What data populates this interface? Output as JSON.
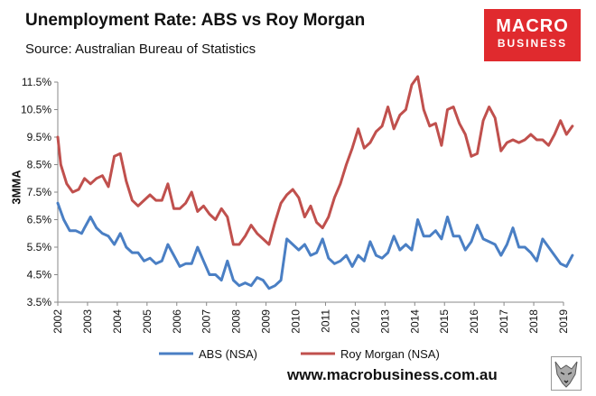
{
  "header": {
    "title": "Unemployment Rate: ABS vs Roy Morgan",
    "subtitle": "Source: Australian Bureau of Statistics"
  },
  "logo": {
    "line1": "MACRO",
    "line2": "BUSINESS",
    "color": "#e02a2e"
  },
  "footer": {
    "url": "www.macrobusiness.com.au"
  },
  "colors": {
    "abs": "#4a7fc4",
    "roy": "#c0504d",
    "axis": "#888888"
  },
  "chart_data": {
    "type": "line",
    "title": "Unemployment Rate: ABS vs Roy Morgan",
    "xlabel": "",
    "ylabel": "3MMA",
    "ylim": [
      3.5,
      11.5
    ],
    "xlim": [
      2002,
      2019
    ],
    "y_ticks": [
      3.5,
      4.5,
      5.5,
      6.5,
      7.5,
      8.5,
      9.5,
      10.5,
      11.5
    ],
    "y_tick_labels": [
      "3.5%",
      "4.5%",
      "5.5%",
      "6.5%",
      "7.5%",
      "8.5%",
      "9.5%",
      "10.5%",
      "11.5%"
    ],
    "x_ticks": [
      2002,
      2003,
      2004,
      2005,
      2006,
      2007,
      2008,
      2009,
      2010,
      2011,
      2012,
      2013,
      2014,
      2015,
      2016,
      2017,
      2018,
      2019
    ],
    "x_tick_labels": [
      "2002",
      "2003",
      "2004",
      "2005",
      "2006",
      "2007",
      "2008",
      "2009",
      "2010",
      "2011",
      "2012",
      "2013",
      "2014",
      "2015",
      "2016",
      "2017",
      "2018",
      "2019"
    ],
    "legend": "bottom",
    "series": [
      {
        "name": "ABS (NSA)",
        "color": "#4a7fc4",
        "points": [
          [
            2002.0,
            7.1
          ],
          [
            2002.2,
            6.5
          ],
          [
            2002.4,
            6.1
          ],
          [
            2002.6,
            6.1
          ],
          [
            2002.8,
            6.0
          ],
          [
            2002.9,
            6.2
          ],
          [
            2003.1,
            6.6
          ],
          [
            2003.3,
            6.2
          ],
          [
            2003.5,
            6.0
          ],
          [
            2003.7,
            5.9
          ],
          [
            2003.9,
            5.6
          ],
          [
            2004.1,
            6.0
          ],
          [
            2004.3,
            5.5
          ],
          [
            2004.5,
            5.3
          ],
          [
            2004.7,
            5.3
          ],
          [
            2004.9,
            5.0
          ],
          [
            2005.1,
            5.1
          ],
          [
            2005.3,
            4.9
          ],
          [
            2005.5,
            5.0
          ],
          [
            2005.7,
            5.6
          ],
          [
            2005.9,
            5.2
          ],
          [
            2006.1,
            4.8
          ],
          [
            2006.3,
            4.9
          ],
          [
            2006.5,
            4.9
          ],
          [
            2006.7,
            5.5
          ],
          [
            2006.9,
            5.0
          ],
          [
            2007.1,
            4.5
          ],
          [
            2007.3,
            4.5
          ],
          [
            2007.5,
            4.3
          ],
          [
            2007.7,
            5.0
          ],
          [
            2007.9,
            4.3
          ],
          [
            2008.1,
            4.1
          ],
          [
            2008.3,
            4.2
          ],
          [
            2008.5,
            4.1
          ],
          [
            2008.7,
            4.4
          ],
          [
            2008.9,
            4.3
          ],
          [
            2009.1,
            4.0
          ],
          [
            2009.3,
            4.1
          ],
          [
            2009.5,
            4.3
          ],
          [
            2009.7,
            5.8
          ],
          [
            2009.9,
            5.6
          ],
          [
            2010.1,
            5.4
          ],
          [
            2010.3,
            5.6
          ],
          [
            2010.5,
            5.2
          ],
          [
            2010.7,
            5.3
          ],
          [
            2010.9,
            5.8
          ],
          [
            2011.1,
            5.1
          ],
          [
            2011.3,
            4.9
          ],
          [
            2011.5,
            5.0
          ],
          [
            2011.7,
            5.2
          ],
          [
            2011.9,
            4.8
          ],
          [
            2012.1,
            5.2
          ],
          [
            2012.3,
            5.0
          ],
          [
            2012.5,
            5.7
          ],
          [
            2012.7,
            5.2
          ],
          [
            2012.9,
            5.1
          ],
          [
            2013.1,
            5.3
          ],
          [
            2013.3,
            5.9
          ],
          [
            2013.5,
            5.4
          ],
          [
            2013.7,
            5.6
          ],
          [
            2013.9,
            5.4
          ],
          [
            2014.1,
            6.5
          ],
          [
            2014.3,
            5.9
          ],
          [
            2014.5,
            5.9
          ],
          [
            2014.7,
            6.1
          ],
          [
            2014.9,
            5.8
          ],
          [
            2015.1,
            6.6
          ],
          [
            2015.3,
            5.9
          ],
          [
            2015.5,
            5.9
          ],
          [
            2015.7,
            5.4
          ],
          [
            2015.9,
            5.7
          ],
          [
            2016.1,
            6.3
          ],
          [
            2016.3,
            5.8
          ],
          [
            2016.5,
            5.7
          ],
          [
            2016.7,
            5.6
          ],
          [
            2016.9,
            5.2
          ],
          [
            2017.1,
            5.6
          ],
          [
            2017.3,
            6.2
          ],
          [
            2017.5,
            5.5
          ],
          [
            2017.7,
            5.5
          ],
          [
            2017.9,
            5.3
          ],
          [
            2018.1,
            5.0
          ],
          [
            2018.3,
            5.8
          ],
          [
            2018.5,
            5.5
          ],
          [
            2018.7,
            5.2
          ],
          [
            2018.9,
            4.9
          ],
          [
            2019.1,
            4.8
          ],
          [
            2019.3,
            5.2
          ]
        ]
      },
      {
        "name": "Roy Morgan (NSA)",
        "color": "#c0504d",
        "points": [
          [
            2002.0,
            9.5
          ],
          [
            2002.1,
            8.5
          ],
          [
            2002.3,
            7.8
          ],
          [
            2002.5,
            7.5
          ],
          [
            2002.7,
            7.6
          ],
          [
            2002.9,
            8.0
          ],
          [
            2003.1,
            7.8
          ],
          [
            2003.3,
            8.0
          ],
          [
            2003.5,
            8.1
          ],
          [
            2003.7,
            7.7
          ],
          [
            2003.9,
            8.8
          ],
          [
            2004.1,
            8.9
          ],
          [
            2004.3,
            7.9
          ],
          [
            2004.5,
            7.2
          ],
          [
            2004.7,
            7.0
          ],
          [
            2004.9,
            7.2
          ],
          [
            2005.1,
            7.4
          ],
          [
            2005.3,
            7.2
          ],
          [
            2005.5,
            7.2
          ],
          [
            2005.7,
            7.8
          ],
          [
            2005.9,
            6.9
          ],
          [
            2006.1,
            6.9
          ],
          [
            2006.3,
            7.1
          ],
          [
            2006.5,
            7.5
          ],
          [
            2006.7,
            6.8
          ],
          [
            2006.9,
            7.0
          ],
          [
            2007.1,
            6.7
          ],
          [
            2007.3,
            6.5
          ],
          [
            2007.5,
            6.9
          ],
          [
            2007.7,
            6.6
          ],
          [
            2007.9,
            5.6
          ],
          [
            2008.1,
            5.6
          ],
          [
            2008.3,
            5.9
          ],
          [
            2008.5,
            6.3
          ],
          [
            2008.7,
            6.0
          ],
          [
            2008.9,
            5.8
          ],
          [
            2009.1,
            5.6
          ],
          [
            2009.3,
            6.4
          ],
          [
            2009.5,
            7.1
          ],
          [
            2009.7,
            7.4
          ],
          [
            2009.9,
            7.6
          ],
          [
            2010.1,
            7.3
          ],
          [
            2010.3,
            6.6
          ],
          [
            2010.5,
            7.0
          ],
          [
            2010.7,
            6.4
          ],
          [
            2010.9,
            6.2
          ],
          [
            2011.1,
            6.6
          ],
          [
            2011.3,
            7.3
          ],
          [
            2011.5,
            7.8
          ],
          [
            2011.7,
            8.5
          ],
          [
            2011.9,
            9.1
          ],
          [
            2012.1,
            9.8
          ],
          [
            2012.3,
            9.1
          ],
          [
            2012.5,
            9.3
          ],
          [
            2012.7,
            9.7
          ],
          [
            2012.9,
            9.9
          ],
          [
            2013.1,
            10.6
          ],
          [
            2013.3,
            9.8
          ],
          [
            2013.5,
            10.3
          ],
          [
            2013.7,
            10.5
          ],
          [
            2013.9,
            11.4
          ],
          [
            2014.1,
            11.7
          ],
          [
            2014.3,
            10.5
          ],
          [
            2014.5,
            9.9
          ],
          [
            2014.7,
            10.0
          ],
          [
            2014.9,
            9.2
          ],
          [
            2015.1,
            10.5
          ],
          [
            2015.3,
            10.6
          ],
          [
            2015.5,
            10.0
          ],
          [
            2015.7,
            9.6
          ],
          [
            2015.9,
            8.8
          ],
          [
            2016.1,
            8.9
          ],
          [
            2016.3,
            10.1
          ],
          [
            2016.5,
            10.6
          ],
          [
            2016.7,
            10.2
          ],
          [
            2016.9,
            9.0
          ],
          [
            2017.1,
            9.3
          ],
          [
            2017.3,
            9.4
          ],
          [
            2017.5,
            9.3
          ],
          [
            2017.7,
            9.4
          ],
          [
            2017.9,
            9.6
          ],
          [
            2018.1,
            9.4
          ],
          [
            2018.3,
            9.4
          ],
          [
            2018.5,
            9.2
          ],
          [
            2018.7,
            9.6
          ],
          [
            2018.9,
            10.1
          ],
          [
            2019.1,
            9.6
          ],
          [
            2019.3,
            9.9
          ]
        ]
      }
    ]
  }
}
